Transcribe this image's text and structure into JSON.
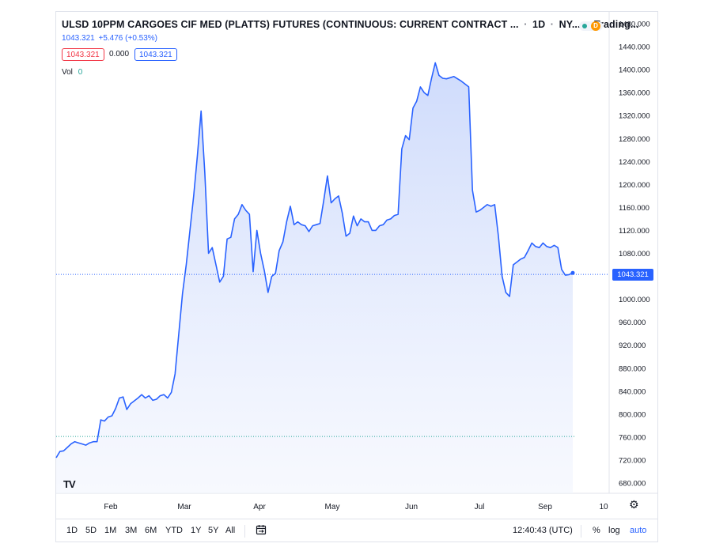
{
  "header": {
    "title": "ULSD 10PPM CARGOES CIF MED (PLATTS) FUTURES (CONTINUOUS: CURRENT CONTRACT ...",
    "interval": "1D",
    "exchange": "NY...",
    "source": "Trading...",
    "last_price": "1043.321",
    "change": "+5.476",
    "change_pct": "(+0.53%)",
    "sell_price": "1043.321",
    "spread": "0.000",
    "buy_price": "1043.321",
    "volume_label": "Vol",
    "volume_value": "0",
    "badge_letter": "D",
    "logo_text": "TV"
  },
  "toolbar": {
    "ranges": [
      "1D",
      "5D",
      "1M",
      "3M",
      "6M",
      "YTD",
      "1Y",
      "5Y",
      "All"
    ],
    "time": "12:40:43 (UTC)",
    "percent": "%",
    "log": "log",
    "auto": "auto"
  },
  "colors": {
    "line": "#2962ff",
    "fill_top": "#c9d7fb",
    "fill_bottom": "#f2f5fe",
    "last_price_line": "#2962ff",
    "base_line": "#26a69a"
  },
  "icons": [
    "tradingview-logo-icon",
    "calendar-range-icon",
    "settings-gear-icon",
    "live-dot-icon"
  ],
  "chart_data": {
    "type": "area",
    "series": [
      {
        "values": [
          724,
          735,
          736,
          742,
          748,
          752,
          750,
          748,
          746,
          750,
          752,
          752,
          790,
          788,
          795,
          797,
          810,
          828,
          830,
          808,
          818,
          823,
          828,
          834,
          828,
          832,
          824,
          826,
          832,
          834,
          828,
          838,
          870,
          940,
          1010,
          1060,
          1120,
          1180,
          1250,
          1328,
          1220,
          1080,
          1090,
          1060,
          1030,
          1040,
          1105,
          1108,
          1140,
          1148,
          1165,
          1155,
          1148,
          1048,
          1120,
          1080,
          1050,
          1012,
          1040,
          1045,
          1085,
          1100,
          1135,
          1162,
          1130,
          1135,
          1130,
          1128,
          1118,
          1128,
          1130,
          1132,
          1172,
          1215,
          1168,
          1175,
          1180,
          1150,
          1110,
          1115,
          1145,
          1128,
          1140,
          1135,
          1135,
          1120,
          1120,
          1128,
          1130,
          1138,
          1140,
          1146,
          1148,
          1262,
          1285,
          1278,
          1333,
          1345,
          1370,
          1360,
          1355,
          1385,
          1412,
          1390,
          1385,
          1384,
          1386,
          1388,
          1384,
          1380,
          1375,
          1370,
          1190,
          1152,
          1155,
          1160,
          1165,
          1162,
          1165,
          1110,
          1040,
          1012,
          1005,
          1060,
          1065,
          1070,
          1073,
          1085,
          1098,
          1092,
          1090,
          1098,
          1092,
          1090,
          1094,
          1090,
          1052,
          1042,
          1043,
          1046
        ]
      }
    ],
    "x_tick_labels": [
      "Feb",
      "Mar",
      "Apr",
      "May",
      "Jun",
      "Jul",
      "Sep",
      "10"
    ],
    "y_tick_labels": [
      "680.000",
      "720.000",
      "760.000",
      "800.000",
      "840.000",
      "880.000",
      "920.000",
      "960.000",
      "1000.000",
      "1040.000",
      "1080.000",
      "1120.000",
      "1160.000",
      "1200.000",
      "1240.000",
      "1280.000",
      "1320.000",
      "1360.000",
      "1400.000",
      "1440.000",
      "1480.000"
    ],
    "ylim": [
      680,
      1480
    ],
    "last_value": "1043.321",
    "reference_level": 761,
    "grid": false
  }
}
